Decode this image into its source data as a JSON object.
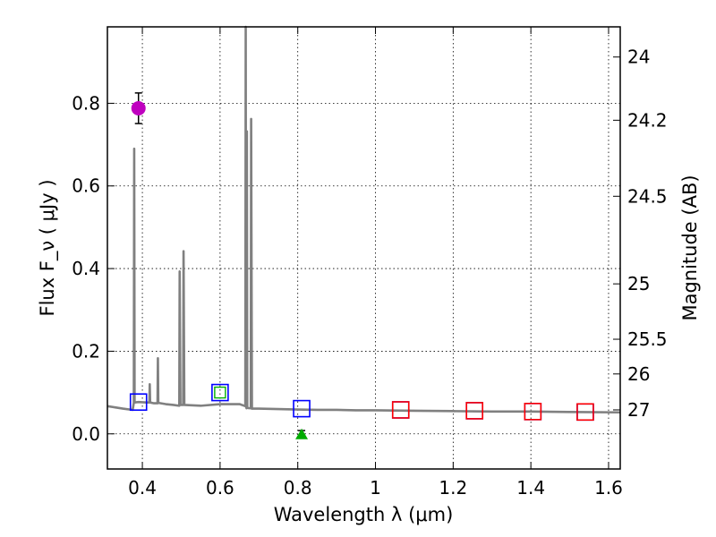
{
  "chart_data": {
    "type": "scatter",
    "xlabel": "Wavelength  λ (μm)",
    "ylabel": "Flux  F_ν  ( μJy )",
    "ylabel_right": "Magnitude (AB)",
    "xlim": [
      0.31,
      1.63
    ],
    "ylim": [
      -0.085,
      0.985
    ],
    "x_ticks": [
      0.4,
      0.6,
      0.8,
      1.0,
      1.2,
      1.4,
      1.6
    ],
    "x_tick_labels": [
      "0.4",
      "0.6",
      "0.8",
      "1",
      "1.2",
      "1.4",
      "1.6"
    ],
    "y_ticks": [
      0.0,
      0.2,
      0.4,
      0.6,
      0.8
    ],
    "y_tick_labels": [
      "0.0",
      "0.2",
      "0.4",
      "0.6",
      "0.8"
    ],
    "right_ticks": [
      {
        "label": "24",
        "flux": 0.912
      },
      {
        "label": "24.2",
        "flux": 0.759
      },
      {
        "label": "24.5",
        "flux": 0.575
      },
      {
        "label": "25",
        "flux": 0.363
      },
      {
        "label": "25.5",
        "flux": 0.229
      },
      {
        "label": "26",
        "flux": 0.145
      },
      {
        "label": "27",
        "flux": 0.058
      }
    ],
    "grid": true,
    "series": [
      {
        "name": "SED model spectrum",
        "kind": "line",
        "color": "#808080",
        "points": [
          [
            0.31,
            0.067
          ],
          [
            0.33,
            0.064
          ],
          [
            0.35,
            0.061
          ],
          [
            0.375,
            0.058
          ],
          [
            0.378,
            0.075
          ],
          [
            0.379,
            0.69
          ],
          [
            0.38,
            0.076
          ],
          [
            0.39,
            0.077
          ],
          [
            0.41,
            0.076
          ],
          [
            0.418,
            0.076
          ],
          [
            0.419,
            0.12
          ],
          [
            0.42,
            0.076
          ],
          [
            0.43,
            0.074
          ],
          [
            0.439,
            0.074
          ],
          [
            0.44,
            0.183
          ],
          [
            0.441,
            0.075
          ],
          [
            0.46,
            0.072
          ],
          [
            0.48,
            0.07
          ],
          [
            0.495,
            0.068
          ],
          [
            0.496,
            0.393
          ],
          [
            0.498,
            0.07
          ],
          [
            0.505,
            0.07
          ],
          [
            0.506,
            0.442
          ],
          [
            0.508,
            0.07
          ],
          [
            0.55,
            0.068
          ],
          [
            0.6,
            0.072
          ],
          [
            0.65,
            0.072
          ],
          [
            0.665,
            0.067
          ],
          [
            0.666,
            0.985
          ],
          [
            0.667,
            0.066
          ],
          [
            0.668,
            0.062
          ],
          [
            0.669,
            0.732
          ],
          [
            0.67,
            0.063
          ],
          [
            0.675,
            0.062
          ],
          [
            0.679,
            0.062
          ],
          [
            0.68,
            0.762
          ],
          [
            0.682,
            0.061
          ],
          [
            0.7,
            0.061
          ],
          [
            0.75,
            0.06
          ],
          [
            0.8,
            0.059
          ],
          [
            0.85,
            0.058
          ],
          [
            0.9,
            0.058
          ],
          [
            0.95,
            0.057
          ],
          [
            1.0,
            0.057
          ],
          [
            1.1,
            0.056
          ],
          [
            1.2,
            0.055
          ],
          [
            1.3,
            0.054
          ],
          [
            1.4,
            0.054
          ],
          [
            1.5,
            0.053
          ],
          [
            1.63,
            0.052
          ]
        ]
      },
      {
        "name": "Detection",
        "kind": "marker",
        "marker": "circle",
        "color": "#bf00bf",
        "points": [
          [
            0.39,
            0.788
          ]
        ],
        "yerr": [
          0.037
        ]
      },
      {
        "name": "Model photometry (blue)",
        "kind": "marker",
        "marker": "open-square",
        "color": "#0000ff",
        "points": [
          [
            0.39,
            0.077
          ],
          [
            0.6,
            0.1
          ],
          [
            0.81,
            0.061
          ],
          [
            1.065,
            0.058
          ],
          [
            1.255,
            0.056
          ],
          [
            1.405,
            0.054
          ],
          [
            1.54,
            0.053
          ]
        ]
      },
      {
        "name": "Model photometry (red)",
        "kind": "marker",
        "marker": "open-square",
        "color": "#ff0000",
        "points": [
          [
            1.065,
            0.058
          ],
          [
            1.255,
            0.056
          ],
          [
            1.405,
            0.054
          ],
          [
            1.54,
            0.053
          ]
        ]
      },
      {
        "name": "Model photometry (green)",
        "kind": "marker",
        "marker": "open-square-small",
        "color": "#00b000",
        "points": [
          [
            0.6,
            0.1
          ]
        ]
      },
      {
        "name": "Upper limit",
        "kind": "marker",
        "marker": "triangle",
        "color": "#00aa00",
        "points": [
          [
            0.81,
            0.0
          ]
        ],
        "yerr": [
          0.008
        ]
      }
    ]
  }
}
